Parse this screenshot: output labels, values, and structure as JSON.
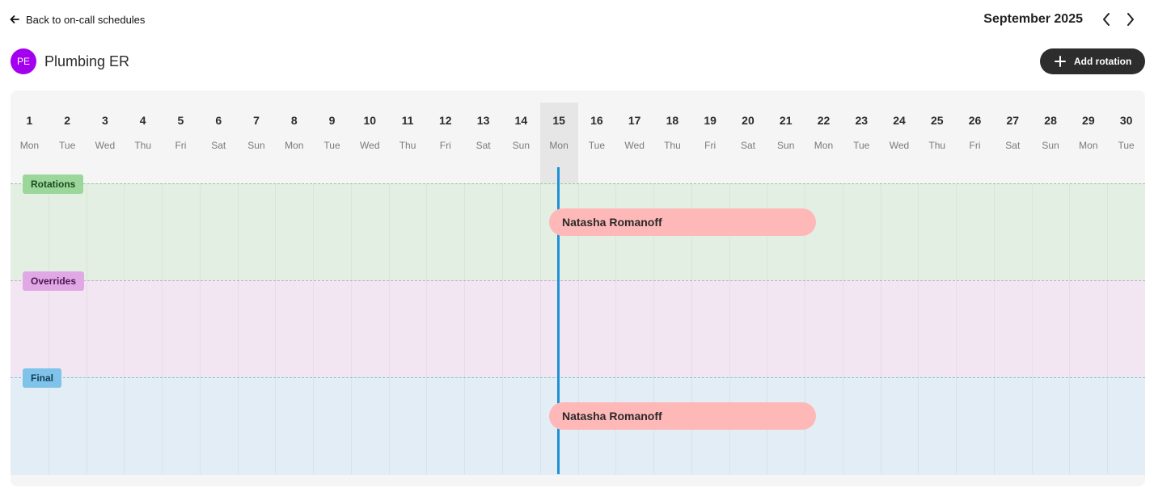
{
  "nav": {
    "back_label": "Back to on-call schedules"
  },
  "calendar_nav": {
    "month_label": "September 2025",
    "prev_icon": "chevron-left-icon",
    "next_icon": "chevron-right-icon"
  },
  "schedule": {
    "initials": "PE",
    "name": "Plumbing ER",
    "avatar_color": "#a400f0"
  },
  "actions": {
    "add_rotation_label": "Add rotation"
  },
  "days": [
    {
      "num": "1",
      "name": "Mon"
    },
    {
      "num": "2",
      "name": "Tue"
    },
    {
      "num": "3",
      "name": "Wed"
    },
    {
      "num": "4",
      "name": "Thu"
    },
    {
      "num": "5",
      "name": "Fri"
    },
    {
      "num": "6",
      "name": "Sat"
    },
    {
      "num": "7",
      "name": "Sun"
    },
    {
      "num": "8",
      "name": "Mon"
    },
    {
      "num": "9",
      "name": "Tue"
    },
    {
      "num": "10",
      "name": "Wed"
    },
    {
      "num": "11",
      "name": "Thu"
    },
    {
      "num": "12",
      "name": "Fri"
    },
    {
      "num": "13",
      "name": "Sat"
    },
    {
      "num": "14",
      "name": "Sun"
    },
    {
      "num": "15",
      "name": "Mon"
    },
    {
      "num": "16",
      "name": "Tue"
    },
    {
      "num": "17",
      "name": "Wed"
    },
    {
      "num": "18",
      "name": "Thu"
    },
    {
      "num": "19",
      "name": "Fri"
    },
    {
      "num": "20",
      "name": "Sat"
    },
    {
      "num": "21",
      "name": "Sun"
    },
    {
      "num": "22",
      "name": "Mon"
    },
    {
      "num": "23",
      "name": "Tue"
    },
    {
      "num": "24",
      "name": "Wed"
    },
    {
      "num": "25",
      "name": "Thu"
    },
    {
      "num": "26",
      "name": "Fri"
    },
    {
      "num": "27",
      "name": "Sat"
    },
    {
      "num": "28",
      "name": "Sun"
    },
    {
      "num": "29",
      "name": "Mon"
    },
    {
      "num": "30",
      "name": "Tue"
    }
  ],
  "today": "15",
  "lanes": {
    "rotations": {
      "label": "Rotations",
      "color": "#9bd79b",
      "shift": {
        "person": "Natasha Romanoff",
        "start_day": "15",
        "end_day": "21"
      }
    },
    "overrides": {
      "label": "Overrides",
      "color": "#e1a8e6"
    },
    "final": {
      "label": "Final",
      "color": "#7fc3ea",
      "shift": {
        "person": "Natasha Romanoff",
        "start_day": "15",
        "end_day": "21"
      }
    }
  },
  "colors": {
    "shift_fill": "#ffb8b8",
    "now_line": "#1e90d8",
    "button_dark": "#2d2d2d"
  }
}
